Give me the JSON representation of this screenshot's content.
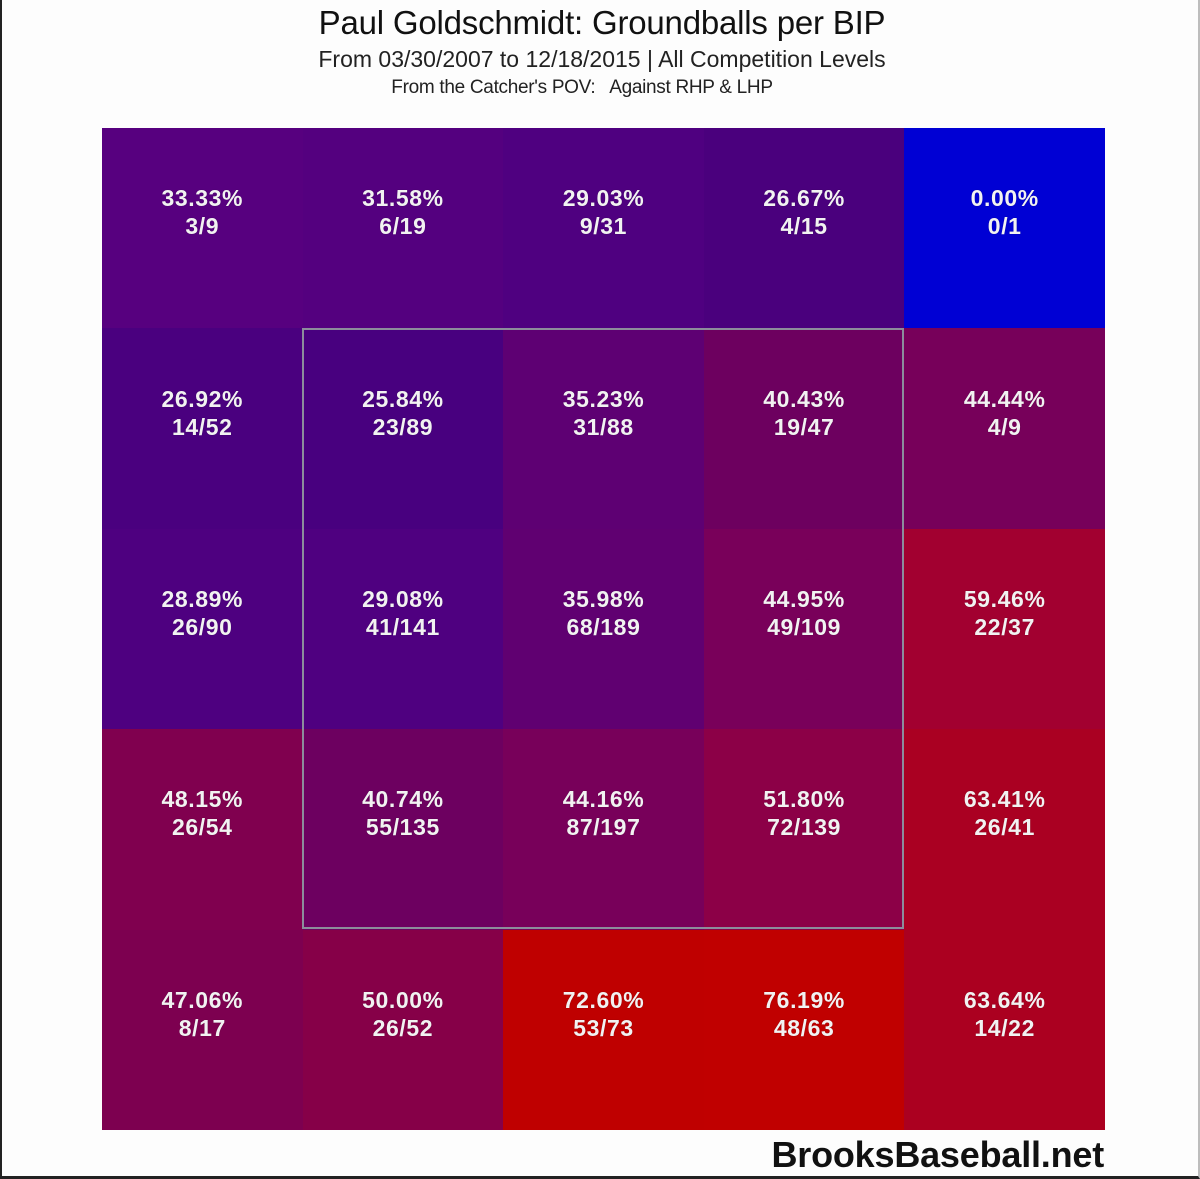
{
  "header": {
    "title": "Paul Goldschmidt: Groundballs per BIP",
    "subtitle": "From 03/30/2007 to 12/18/2015 | All Competition Levels",
    "subtitle2": "From the Catcher's POV:   Against RHP & LHP"
  },
  "watermark": "BrooksBaseball.net",
  "colors": {
    "low": "#0000d4",
    "mid": "#5a0078",
    "high": "#c00000",
    "zone_border": "#8c8c9c",
    "cell_text": "#f2f2f2"
  },
  "chart_data": {
    "type": "heatmap",
    "title": "Paul Goldschmidt: Groundballs per BIP",
    "subtitle": "From 03/30/2007 to 12/18/2015 | All Competition Levels",
    "annotation": "From the Catcher's POV:   Against RHP & LHP",
    "xlabel": "",
    "ylabel": "",
    "rows": 5,
    "cols": 5,
    "strike_zone": {
      "row_start": 1,
      "row_end": 3,
      "col_start": 1,
      "col_end": 3
    },
    "cells": [
      [
        {
          "pct": "33.33%",
          "frac": "3/9",
          "value": 33.33,
          "color": "#57007f"
        },
        {
          "pct": "31.58%",
          "frac": "6/19",
          "value": 31.58,
          "color": "#54007f"
        },
        {
          "pct": "29.03%",
          "frac": "9/31",
          "value": 29.03,
          "color": "#4f0080"
        },
        {
          "pct": "26.67%",
          "frac": "4/15",
          "value": 26.67,
          "color": "#4a007d"
        },
        {
          "pct": "0.00%",
          "frac": "0/1",
          "value": 0.0,
          "color": "#0000d4"
        }
      ],
      [
        {
          "pct": "26.92%",
          "frac": "14/52",
          "value": 26.92,
          "color": "#4a007f"
        },
        {
          "pct": "25.84%",
          "frac": "23/89",
          "value": 25.84,
          "color": "#48007f"
        },
        {
          "pct": "35.23%",
          "frac": "31/88",
          "value": 35.23,
          "color": "#5e0073"
        },
        {
          "pct": "40.43%",
          "frac": "19/47",
          "value": 40.43,
          "color": "#6d005f"
        },
        {
          "pct": "44.44%",
          "frac": "4/9",
          "value": 44.44,
          "color": "#77005a"
        }
      ],
      [
        {
          "pct": "28.89%",
          "frac": "26/90",
          "value": 28.89,
          "color": "#4e0080"
        },
        {
          "pct": "29.08%",
          "frac": "41/141",
          "value": 29.08,
          "color": "#4f0080"
        },
        {
          "pct": "35.98%",
          "frac": "68/189",
          "value": 35.98,
          "color": "#600071"
        },
        {
          "pct": "44.95%",
          "frac": "49/109",
          "value": 44.95,
          "color": "#79005a"
        },
        {
          "pct": "59.46%",
          "frac": "22/37",
          "value": 59.46,
          "color": "#a20030"
        }
      ],
      [
        {
          "pct": "48.15%",
          "frac": "26/54",
          "value": 48.15,
          "color": "#80004f"
        },
        {
          "pct": "40.74%",
          "frac": "55/135",
          "value": 40.74,
          "color": "#6d0060"
        },
        {
          "pct": "44.16%",
          "frac": "87/197",
          "value": 44.16,
          "color": "#78005a"
        },
        {
          "pct": "51.80%",
          "frac": "72/139",
          "value": 51.8,
          "color": "#8c0047"
        },
        {
          "pct": "63.41%",
          "frac": "26/41",
          "value": 63.41,
          "color": "#aa0022"
        }
      ],
      [
        {
          "pct": "47.06%",
          "frac": "8/17",
          "value": 47.06,
          "color": "#7d0050"
        },
        {
          "pct": "50.00%",
          "frac": "26/52",
          "value": 50.0,
          "color": "#860048"
        },
        {
          "pct": "72.60%",
          "frac": "53/73",
          "value": 72.6,
          "color": "#bf0000"
        },
        {
          "pct": "76.19%",
          "frac": "48/63",
          "value": 76.19,
          "color": "#c00000"
        },
        {
          "pct": "63.64%",
          "frac": "14/22",
          "value": 63.64,
          "color": "#ab0020"
        }
      ]
    ]
  }
}
